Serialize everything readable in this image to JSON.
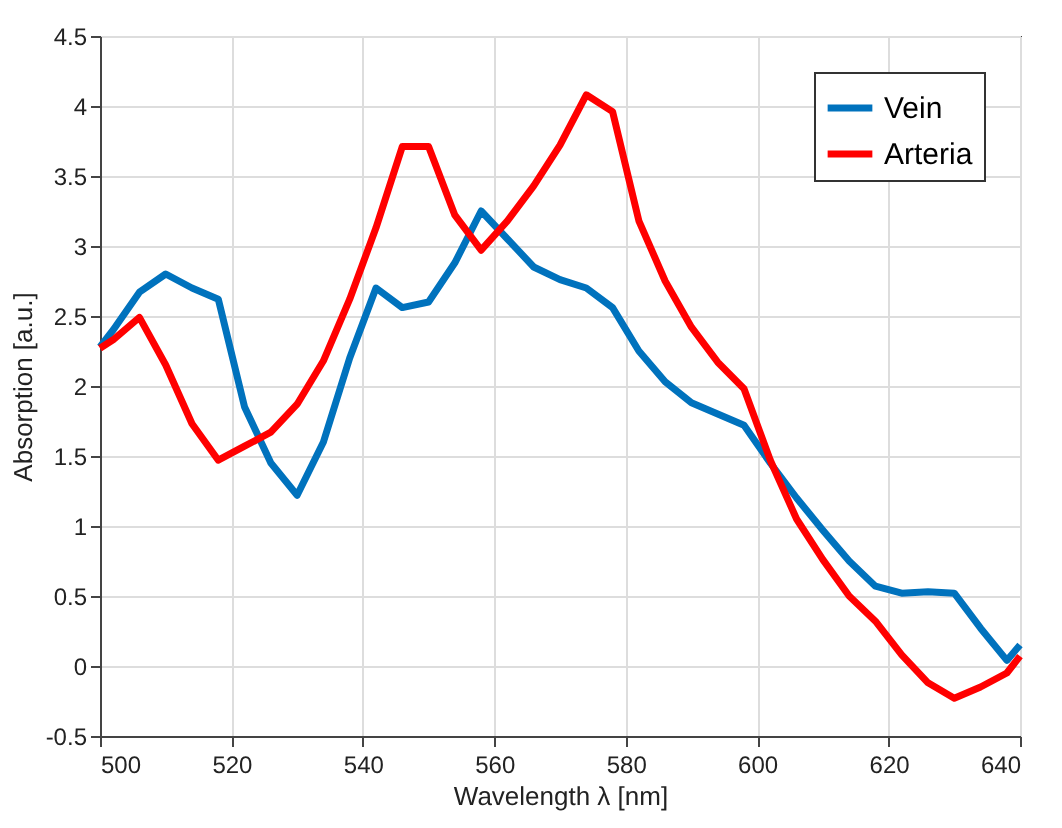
{
  "chart_data": {
    "type": "line",
    "xlabel": "Wavelength λ [nm]",
    "ylabel": "Absorption [a.u.]",
    "x": [
      500,
      502,
      506,
      510,
      514,
      518,
      522,
      526,
      530,
      534,
      538,
      542,
      546,
      550,
      554,
      558,
      562,
      566,
      570,
      574,
      578,
      582,
      586,
      590,
      594,
      598,
      602,
      606,
      610,
      614,
      618,
      622,
      626,
      630,
      634,
      638,
      640
    ],
    "series": [
      {
        "name": "Vein",
        "color": "#0072bd",
        "values": [
          2.28,
          2.4,
          2.67,
          2.8,
          2.7,
          2.62,
          1.85,
          1.45,
          1.22,
          1.6,
          2.2,
          2.7,
          2.56,
          2.6,
          2.88,
          3.25,
          3.05,
          2.85,
          2.76,
          2.7,
          2.56,
          2.25,
          2.03,
          1.88,
          1.8,
          1.72,
          1.45,
          1.2,
          0.97,
          0.75,
          0.57,
          0.52,
          0.53,
          0.52,
          0.27,
          0.04,
          0.15
        ]
      },
      {
        "name": "Arteria",
        "color": "#ff0000",
        "values": [
          2.27,
          2.33,
          2.49,
          2.15,
          1.73,
          1.47,
          1.57,
          1.67,
          1.87,
          2.18,
          2.62,
          3.13,
          3.71,
          3.71,
          3.22,
          2.97,
          3.18,
          3.43,
          3.72,
          4.08,
          3.96,
          3.18,
          2.75,
          2.42,
          2.17,
          1.98,
          1.47,
          1.05,
          0.76,
          0.5,
          0.32,
          0.08,
          -0.12,
          -0.23,
          -0.15,
          -0.05,
          0.07
        ]
      }
    ],
    "xlim": [
      500,
      640
    ],
    "xticks": [
      500,
      520,
      540,
      560,
      580,
      600,
      620,
      640
    ],
    "ylim": [
      -0.5,
      4.5
    ],
    "yticks": [
      -0.5,
      0,
      0.5,
      1,
      1.5,
      2,
      2.5,
      3,
      3.5,
      4,
      4.5
    ],
    "grid": true,
    "legend": "top right",
    "marker": "none",
    "line_style": "solid"
  }
}
